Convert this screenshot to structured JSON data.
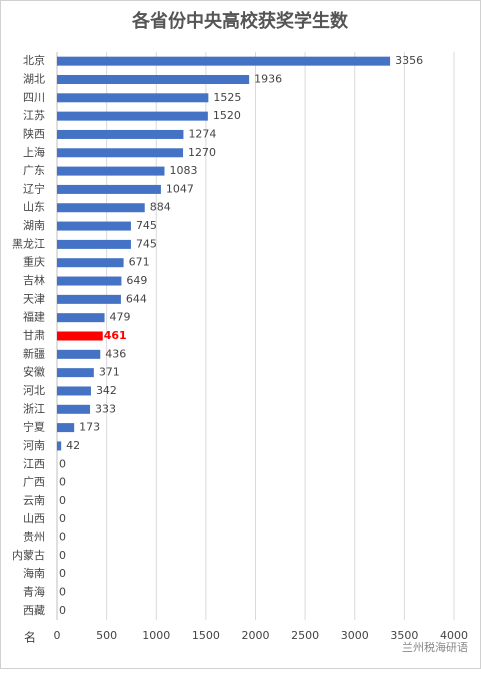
{
  "chart_data": {
    "type": "barh",
    "title": "各省份中央高校获奖学生数",
    "categories": [
      "北京",
      "湖北",
      "四川",
      "江苏",
      "陕西",
      "上海",
      "广东",
      "辽宁",
      "山东",
      "湖南",
      "黑龙江",
      "重庆",
      "吉林",
      "天津",
      "福建",
      "甘肃",
      "新疆",
      "安徽",
      "河北",
      "浙江",
      "宁夏",
      "河南",
      "江西",
      "广西",
      "云南",
      "山西",
      "贵州",
      "内蒙古",
      "海南",
      "青海",
      "西藏"
    ],
    "values": [
      3356,
      1936,
      1525,
      1520,
      1274,
      1270,
      1083,
      1047,
      884,
      745,
      745,
      671,
      649,
      644,
      479,
      461,
      436,
      371,
      342,
      333,
      173,
      42,
      0,
      0,
      0,
      0,
      0,
      0,
      0,
      0,
      0
    ],
    "colors": [
      "#4472c4",
      "#4472c4",
      "#4472c4",
      "#4472c4",
      "#4472c4",
      "#4472c4",
      "#4472c4",
      "#4472c4",
      "#4472c4",
      "#4472c4",
      "#4472c4",
      "#4472c4",
      "#4472c4",
      "#4472c4",
      "#4472c4",
      "#ff0000",
      "#4472c4",
      "#4472c4",
      "#4472c4",
      "#4472c4",
      "#4472c4",
      "#4472c4",
      "#4472c4",
      "#4472c4",
      "#4472c4",
      "#4472c4",
      "#4472c4",
      "#4472c4",
      "#4472c4",
      "#4472c4",
      "#4472c4"
    ],
    "xlim": [
      0,
      4000
    ],
    "xticks": [
      0,
      500,
      1000,
      1500,
      2000,
      2500,
      3000,
      3500,
      4000
    ],
    "grid": true,
    "unit_label": "名",
    "watermark": "兰州税海研语"
  }
}
